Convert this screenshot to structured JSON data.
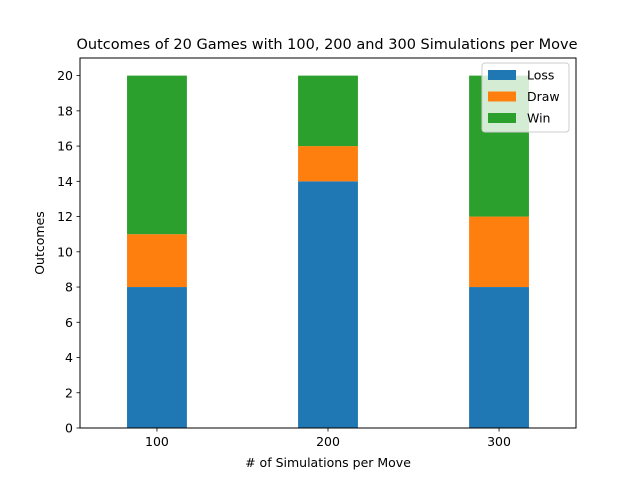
{
  "chart_data": {
    "type": "bar",
    "stacked": true,
    "title": "Outcomes of 20 Games with 100, 200 and 300 Simulations per Move",
    "xlabel": "# of Simulations per Move",
    "ylabel": "Outcomes",
    "categories": [
      "100",
      "200",
      "300"
    ],
    "series": [
      {
        "name": "Loss",
        "values": [
          8,
          14,
          8
        ],
        "color": "#1f77b4"
      },
      {
        "name": "Draw",
        "values": [
          3,
          2,
          4
        ],
        "color": "#ff7f0e"
      },
      {
        "name": "Win",
        "values": [
          9,
          4,
          8
        ],
        "color": "#2ca02c"
      }
    ],
    "ylim": [
      0,
      21
    ],
    "yticks": [
      0,
      2,
      4,
      6,
      8,
      10,
      12,
      14,
      16,
      18,
      20
    ],
    "grid": false,
    "legend": "top-right"
  }
}
